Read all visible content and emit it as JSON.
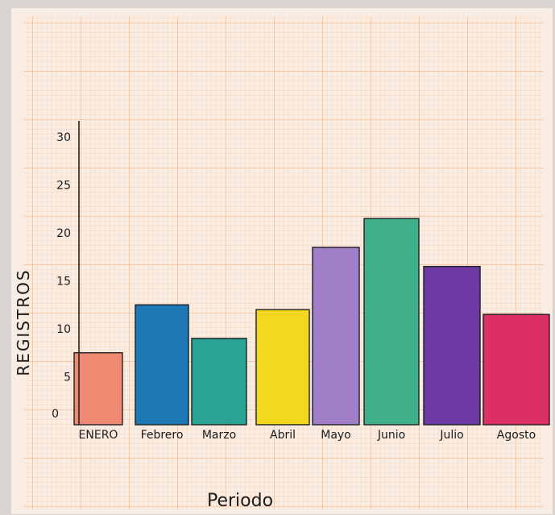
{
  "chart_data": {
    "type": "bar",
    "title": "",
    "xlabel": "Periodo",
    "ylabel": "REGISTROS",
    "categories": [
      "ENERO",
      "Febrero",
      "Marzo",
      "Abril",
      "Mayo",
      "Junio",
      "Julio",
      "Agosto"
    ],
    "values": [
      7.5,
      12.5,
      9,
      12,
      18.5,
      21.5,
      16.5,
      11.5
    ],
    "colors": [
      "#ef8a72",
      "#1f78b6",
      "#2aa395",
      "#f2d81e",
      "#a07ec8",
      "#3fb089",
      "#6d3aa3",
      "#dc2f66"
    ],
    "ylim": [
      0,
      30
    ],
    "yticks": [
      "0",
      "5",
      "10",
      "15",
      "20",
      "25",
      "30"
    ],
    "grid": true,
    "paper_color": "#f7e9de",
    "grid_color": "#f0b98e"
  }
}
